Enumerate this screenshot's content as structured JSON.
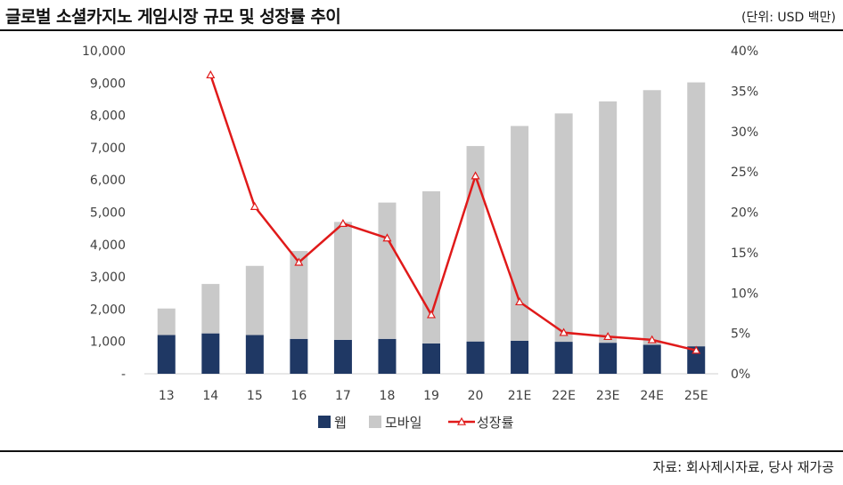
{
  "header": {
    "title": "글로벌 소셜카지노 게임시장 규모 및 성장률 추이",
    "unit": "(단위: USD 백만)"
  },
  "footer": {
    "source": "자료: 회사제시자료, 당사 재가공"
  },
  "chart_data": {
    "type": "bar",
    "stacked": true,
    "categories": [
      "13",
      "14",
      "15",
      "16",
      "17",
      "18",
      "19",
      "20",
      "21E",
      "22E",
      "23E",
      "24E",
      "25E"
    ],
    "series": [
      {
        "name": "웹",
        "kind": "bar",
        "axis": "left",
        "color": "#1F3864",
        "values": [
          1200,
          1250,
          1200,
          1080,
          1050,
          1080,
          940,
          1000,
          1020,
          990,
          960,
          900,
          850
        ]
      },
      {
        "name": "모바일",
        "kind": "bar",
        "axis": "left",
        "color": "#C9C9C9",
        "values": [
          820,
          1530,
          2140,
          2720,
          3650,
          4220,
          4710,
          6050,
          6650,
          7070,
          7470,
          7880,
          8170
        ]
      },
      {
        "name": "성장률",
        "kind": "line",
        "axis": "right",
        "color": "#E01A1A",
        "values": [
          null,
          37.0,
          20.7,
          13.8,
          18.6,
          16.8,
          7.3,
          24.5,
          8.9,
          5.1,
          4.6,
          4.2,
          2.9
        ]
      }
    ],
    "y_left": {
      "ylim": [
        0,
        10000
      ],
      "ticks": [
        "-",
        "1,000",
        "2,000",
        "3,000",
        "4,000",
        "5,000",
        "6,000",
        "7,000",
        "8,000",
        "9,000",
        "10,000"
      ]
    },
    "y_right": {
      "ylim": [
        0,
        40
      ],
      "ticks": [
        "0%",
        "5%",
        "10%",
        "15%",
        "20%",
        "25%",
        "30%",
        "35%",
        "40%"
      ]
    },
    "grid": false,
    "legend_position": "bottom"
  }
}
